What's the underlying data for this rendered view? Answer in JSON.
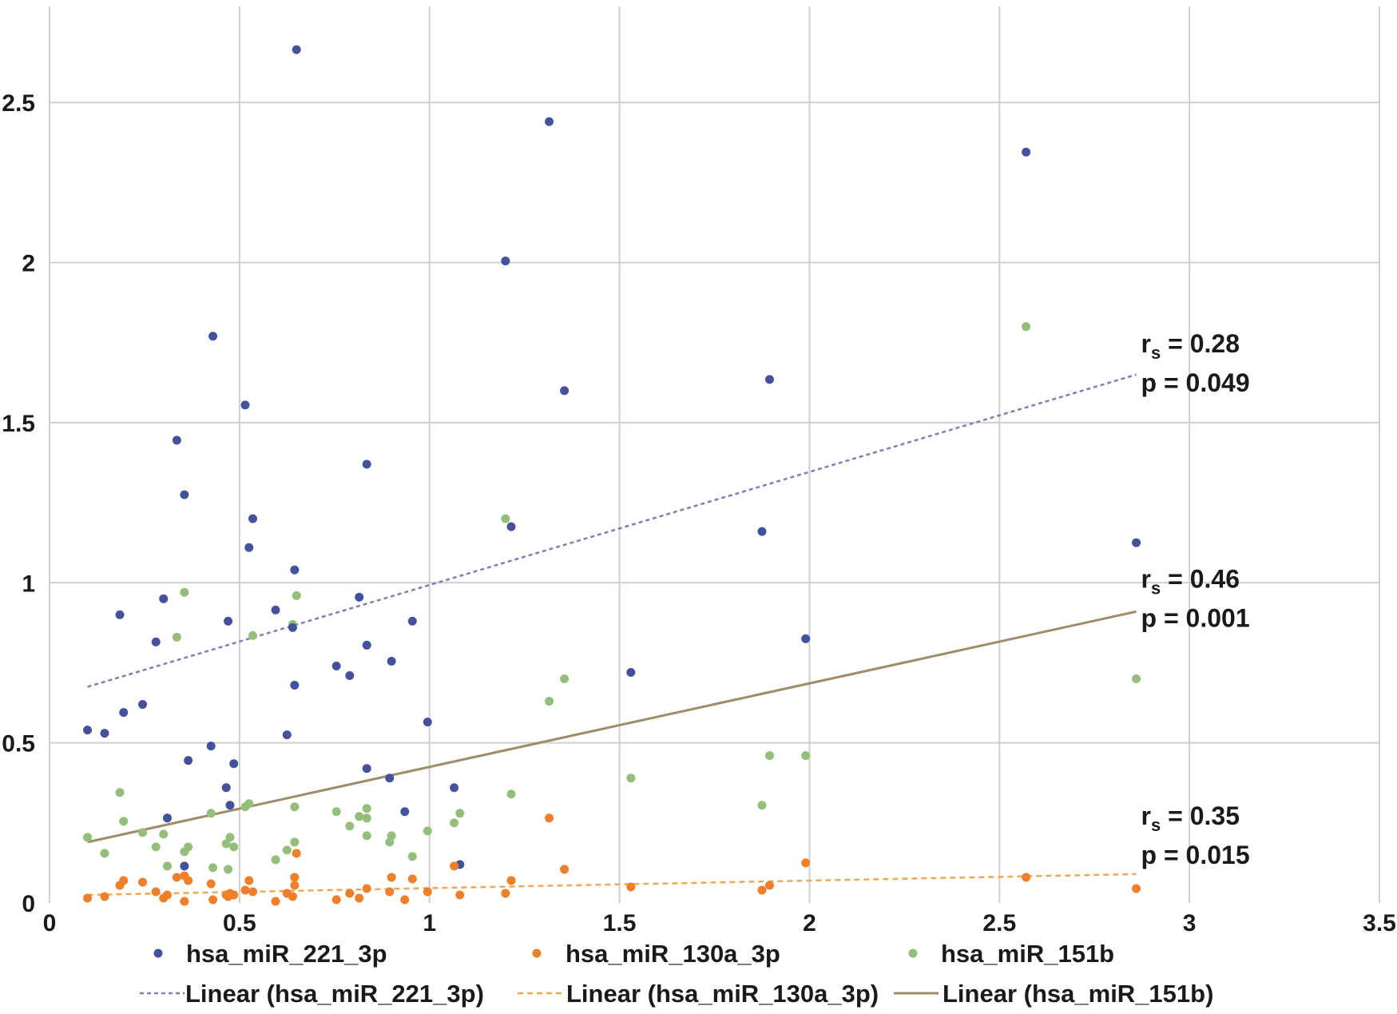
{
  "chart_data": {
    "type": "scatter",
    "title": "",
    "xlabel": "",
    "ylabel": "",
    "xlim": [
      0,
      3.5
    ],
    "ylim": [
      0,
      2.8
    ],
    "x_ticks": [
      0,
      0.5,
      1,
      1.5,
      2,
      2.5,
      3,
      3.5
    ],
    "x_tick_labels": [
      "0",
      "0.5",
      "1",
      "1.5",
      "2",
      "2.5",
      "3",
      "3.5"
    ],
    "y_ticks": [
      0,
      0.5,
      1,
      1.5,
      2,
      2.5
    ],
    "y_tick_labels": [
      "0",
      "0.5",
      "1",
      "1.5",
      "2",
      "2.5"
    ],
    "grid": true,
    "legend_position": "bottom",
    "colors": {
      "hsa_miR_221_3p": "#44529e",
      "hsa_miR_130a_3p": "#f07f2a",
      "hsa_miR_151b": "#93bf7a",
      "trend_221": "#7d7fb8",
      "trend_130a": "#f0a855",
      "trend_151b": "#a08c68",
      "grid": "#cfcfcf"
    },
    "series": [
      {
        "name": "hsa_miR_221_3p",
        "points": [
          [
            0.1,
            0.54
          ],
          [
            0.145,
            0.53
          ],
          [
            0.185,
            0.9
          ],
          [
            0.195,
            0.595
          ],
          [
            0.245,
            0.62
          ],
          [
            0.28,
            0.815
          ],
          [
            0.3,
            0.95
          ],
          [
            0.31,
            0.265
          ],
          [
            0.335,
            1.445
          ],
          [
            0.355,
            1.275
          ],
          [
            0.355,
            0.115
          ],
          [
            0.365,
            0.445
          ],
          [
            0.425,
            0.49
          ],
          [
            0.43,
            1.77
          ],
          [
            0.465,
            0.36
          ],
          [
            0.47,
            0.88
          ],
          [
            0.475,
            0.305
          ],
          [
            0.485,
            0.435
          ],
          [
            0.515,
            1.555
          ],
          [
            0.525,
            1.11
          ],
          [
            0.535,
            1.2
          ],
          [
            0.595,
            0.915
          ],
          [
            0.625,
            0.525
          ],
          [
            0.64,
            0.86
          ],
          [
            0.645,
            0.68
          ],
          [
            0.645,
            1.04
          ],
          [
            0.65,
            2.665
          ],
          [
            0.755,
            0.74
          ],
          [
            0.79,
            0.71
          ],
          [
            0.815,
            0.955
          ],
          [
            0.835,
            0.42
          ],
          [
            0.835,
            0.805
          ],
          [
            0.835,
            1.37
          ],
          [
            0.895,
            0.39
          ],
          [
            0.9,
            0.755
          ],
          [
            0.935,
            0.285
          ],
          [
            0.955,
            0.88
          ],
          [
            0.995,
            0.565
          ],
          [
            1.065,
            0.36
          ],
          [
            1.08,
            0.12
          ],
          [
            1.2,
            2.005
          ],
          [
            1.215,
            1.175
          ],
          [
            1.315,
            2.44
          ],
          [
            1.355,
            1.6
          ],
          [
            1.53,
            0.72
          ],
          [
            1.875,
            1.16
          ],
          [
            1.895,
            1.635
          ],
          [
            1.99,
            0.825
          ],
          [
            2.57,
            2.345
          ],
          [
            2.86,
            1.125
          ]
        ]
      },
      {
        "name": "hsa_miR_130a_3p",
        "points": [
          [
            0.1,
            0.015
          ],
          [
            0.145,
            0.02
          ],
          [
            0.185,
            0.055
          ],
          [
            0.195,
            0.07
          ],
          [
            0.245,
            0.065
          ],
          [
            0.28,
            0.035
          ],
          [
            0.3,
            0.015
          ],
          [
            0.31,
            0.025
          ],
          [
            0.335,
            0.08
          ],
          [
            0.355,
            0.005
          ],
          [
            0.355,
            0.085
          ],
          [
            0.365,
            0.07
          ],
          [
            0.425,
            0.06
          ],
          [
            0.43,
            0.01
          ],
          [
            0.465,
            0.025
          ],
          [
            0.47,
            0.02
          ],
          [
            0.475,
            0.03
          ],
          [
            0.485,
            0.025
          ],
          [
            0.515,
            0.04
          ],
          [
            0.525,
            0.07
          ],
          [
            0.535,
            0.035
          ],
          [
            0.595,
            0.005
          ],
          [
            0.625,
            0.03
          ],
          [
            0.64,
            0.02
          ],
          [
            0.645,
            0.055
          ],
          [
            0.645,
            0.08
          ],
          [
            0.65,
            0.155
          ],
          [
            0.755,
            0.01
          ],
          [
            0.79,
            0.03
          ],
          [
            0.815,
            0.015
          ],
          [
            0.835,
            0.045
          ],
          [
            0.895,
            0.035
          ],
          [
            0.9,
            0.08
          ],
          [
            0.935,
            0.01
          ],
          [
            0.955,
            0.075
          ],
          [
            0.995,
            0.035
          ],
          [
            1.065,
            0.115
          ],
          [
            1.08,
            0.025
          ],
          [
            1.2,
            0.03
          ],
          [
            1.215,
            0.07
          ],
          [
            1.315,
            0.265
          ],
          [
            1.355,
            0.105
          ],
          [
            1.53,
            0.05
          ],
          [
            1.875,
            0.04
          ],
          [
            1.895,
            0.055
          ],
          [
            1.99,
            0.125
          ],
          [
            2.57,
            0.08
          ],
          [
            2.86,
            0.045
          ]
        ]
      },
      {
        "name": "hsa_miR_151b",
        "points": [
          [
            0.1,
            0.205
          ],
          [
            0.145,
            0.155
          ],
          [
            0.185,
            0.345
          ],
          [
            0.195,
            0.255
          ],
          [
            0.245,
            0.22
          ],
          [
            0.28,
            0.175
          ],
          [
            0.3,
            0.215
          ],
          [
            0.31,
            0.115
          ],
          [
            0.335,
            0.83
          ],
          [
            0.355,
            0.97
          ],
          [
            0.355,
            0.16
          ],
          [
            0.365,
            0.175
          ],
          [
            0.425,
            0.28
          ],
          [
            0.43,
            0.11
          ],
          [
            0.465,
            0.185
          ],
          [
            0.47,
            0.105
          ],
          [
            0.475,
            0.205
          ],
          [
            0.485,
            0.175
          ],
          [
            0.515,
            0.3
          ],
          [
            0.525,
            0.31
          ],
          [
            0.535,
            0.835
          ],
          [
            0.595,
            0.135
          ],
          [
            0.625,
            0.165
          ],
          [
            0.64,
            0.87
          ],
          [
            0.645,
            0.19
          ],
          [
            0.645,
            0.3
          ],
          [
            0.65,
            0.96
          ],
          [
            0.755,
            0.285
          ],
          [
            0.79,
            0.24
          ],
          [
            0.815,
            0.27
          ],
          [
            0.835,
            0.265
          ],
          [
            0.835,
            0.295
          ],
          [
            0.835,
            0.21
          ],
          [
            0.895,
            0.19
          ],
          [
            0.9,
            0.21
          ],
          [
            0.955,
            0.145
          ],
          [
            0.995,
            0.225
          ],
          [
            1.065,
            0.25
          ],
          [
            1.08,
            0.28
          ],
          [
            1.2,
            1.2
          ],
          [
            1.215,
            0.34
          ],
          [
            1.315,
            0.63
          ],
          [
            1.355,
            0.7
          ],
          [
            1.53,
            0.39
          ],
          [
            1.875,
            0.305
          ],
          [
            1.895,
            0.46
          ],
          [
            1.99,
            0.46
          ],
          [
            2.57,
            1.8
          ],
          [
            2.86,
            0.7
          ]
        ]
      }
    ],
    "trendlines": [
      {
        "name": "Linear (hsa_miR_221_3p)",
        "series": "hsa_miR_221_3p",
        "style": "dotted",
        "x": [
          0.1,
          2.86
        ],
        "y": [
          0.675,
          1.65
        ]
      },
      {
        "name": "Linear (hsa_miR_130a_3p)",
        "series": "hsa_miR_130a_3p",
        "style": "dashed",
        "x": [
          0.1,
          2.86
        ],
        "y": [
          0.025,
          0.09
        ]
      },
      {
        "name": "Linear (hsa_miR_151b)",
        "series": "hsa_miR_151b",
        "style": "solid",
        "x": [
          0.1,
          2.86
        ],
        "y": [
          0.19,
          0.91
        ]
      }
    ],
    "annotations": [
      {
        "id": "a221",
        "r_label": "r",
        "r_sub": "s",
        "r_value": " = 0.28",
        "p_label": "p = 0.049",
        "anchor_x": 2.86,
        "anchor_y": 1.72
      },
      {
        "id": "a151b",
        "r_label": "r",
        "r_sub": "s",
        "r_value": " = 0.46",
        "p_label": "p = 0.001",
        "anchor_x": 2.86,
        "anchor_y": 0.985
      },
      {
        "id": "a130a",
        "r_label": "r",
        "r_sub": "s",
        "r_value": " = 0.35",
        "p_label": "p = 0.015",
        "anchor_x": 2.86,
        "anchor_y": 0.245
      }
    ],
    "legend": {
      "markers": [
        "hsa_miR_221_3p",
        "hsa_miR_130a_3p",
        "hsa_miR_151b"
      ],
      "lines": [
        "Linear (hsa_miR_221_3p)",
        "Linear (hsa_miR_130a_3p)",
        "Linear (hsa_miR_151b)"
      ]
    }
  }
}
